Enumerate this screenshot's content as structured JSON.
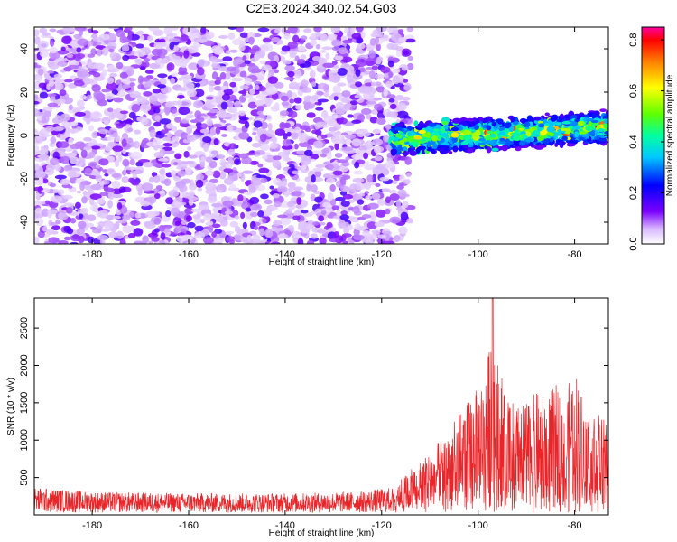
{
  "title": "C2E3.2024.340.02.54.G03",
  "chart_data": [
    {
      "type": "heatmap",
      "xlabel": "Height of straight line (km)",
      "ylabel": "Frequency (Hz)",
      "xlim": [
        -192,
        -73
      ],
      "ylim": [
        -50,
        50
      ],
      "xticks": [
        -180,
        -160,
        -140,
        -120,
        -100,
        -80
      ],
      "yticks": [
        -40,
        -20,
        0,
        20,
        40
      ],
      "colorbar": {
        "label": "Normalized spectral amplitude",
        "range": [
          0.0,
          0.85
        ],
        "ticks": [
          0.0,
          0.2,
          0.4,
          0.6,
          0.8
        ],
        "colormap": "rainbow (white, purple, blue, cyan, green, yellow, orange, red)"
      },
      "regions": [
        {
          "x_range": [
            -192,
            -118
          ],
          "freq_range": [
            -50,
            50
          ],
          "amplitude": "low (0.0-0.15), broadband noise"
        },
        {
          "x_range": [
            -118,
            -73
          ],
          "freq_range": [
            -8,
            8
          ],
          "center_freq_start": -2,
          "center_freq_end": 4,
          "amplitude": "0.2-0.8 narrow band"
        }
      ]
    },
    {
      "type": "line",
      "xlabel": "Height of straight line (km)",
      "ylabel": "SNR (10 * v/v)",
      "xlim": [
        -192,
        -73
      ],
      "ylim": [
        0,
        2900
      ],
      "xticks": [
        -180,
        -160,
        -140,
        -120,
        -100,
        -80
      ],
      "yticks": [
        500,
        1000,
        1500,
        2000,
        2500
      ],
      "color": "#e8262a",
      "envelope": {
        "x": [
          -192,
          -180,
          -160,
          -140,
          -125,
          -118,
          -114,
          -110,
          -106,
          -103,
          -100,
          -98,
          -97,
          -96,
          -94,
          -92,
          -90,
          -88,
          -86,
          -84,
          -82,
          -80,
          -78,
          -76,
          -74,
          -73
        ],
        "y_max": [
          380,
          320,
          300,
          300,
          320,
          380,
          600,
          850,
          1150,
          1450,
          1700,
          2100,
          2900,
          2100,
          1600,
          1450,
          1500,
          1650,
          1550,
          1750,
          1600,
          2000,
          1500,
          1400,
          1300,
          1200
        ]
      }
    }
  ]
}
